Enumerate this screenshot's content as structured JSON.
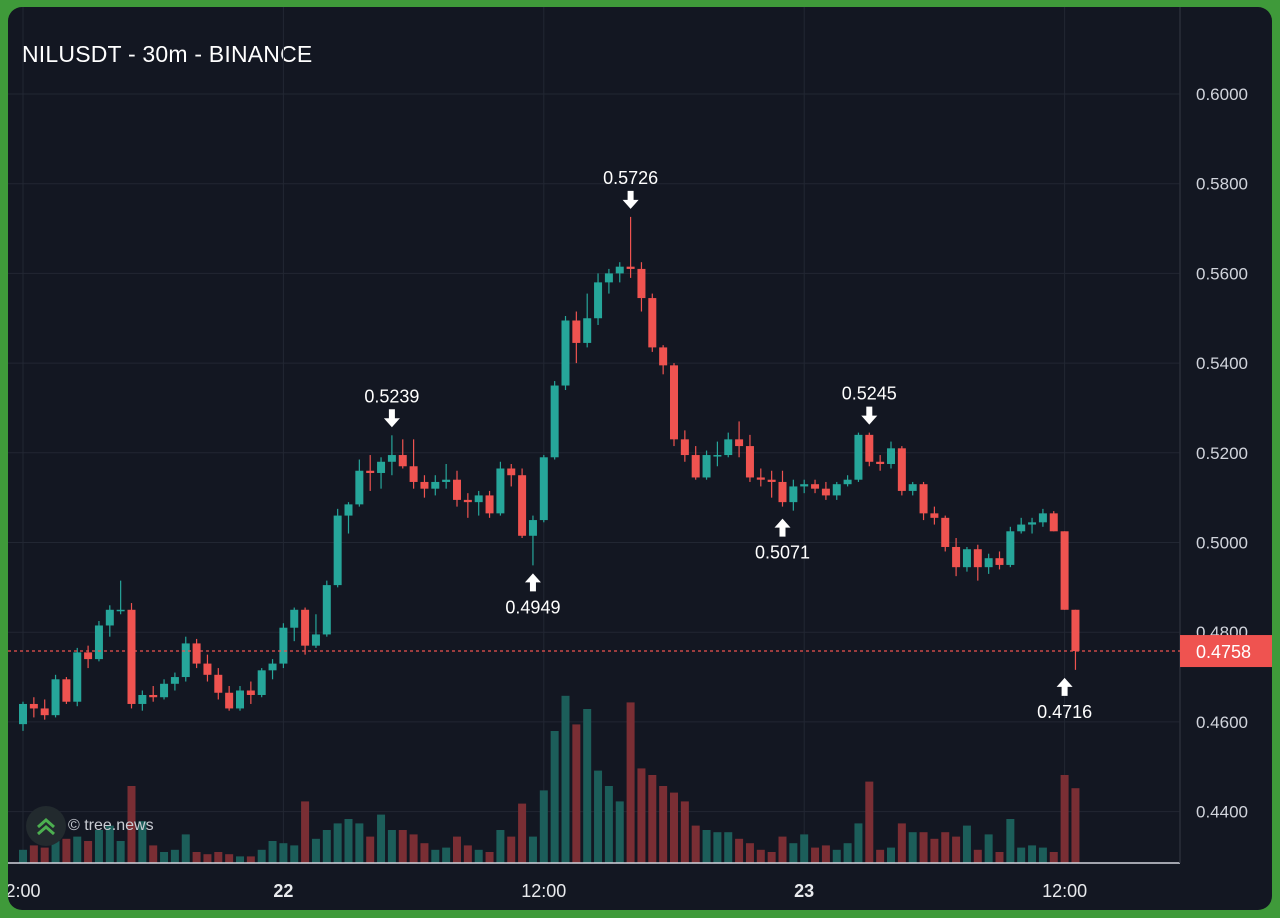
{
  "header": {
    "title": "NILUSDT - 30m - BINANCE"
  },
  "watermark": {
    "text": "© tree.news",
    "icon": "double-chevron-up-icon"
  },
  "colors": {
    "background": "#131722",
    "up": "#26a69a",
    "down": "#ef5350",
    "volume_up": "#1c5e5a",
    "volume_down": "#7a2e34",
    "grid": "#222733",
    "price_line": "#ef5350",
    "text": "#d1d4dc"
  },
  "chart_data": {
    "type": "candlestick",
    "symbol": "NILUSDT",
    "interval": "30m",
    "exchange": "BINANCE",
    "ylim": [
      0.43,
      0.61
    ],
    "y_ticks": [
      "0.6000",
      "0.5800",
      "0.5600",
      "0.5400",
      "0.5200",
      "0.5000",
      "0.4800",
      "0.4600",
      "0.4400"
    ],
    "x_ticks": [
      {
        "label": "2:00",
        "index": 0,
        "bold": false
      },
      {
        "label": "22",
        "index": 24,
        "bold": true
      },
      {
        "label": "12:00",
        "index": 48,
        "bold": false
      },
      {
        "label": "23",
        "index": 72,
        "bold": true
      },
      {
        "label": "12:00",
        "index": 96,
        "bold": false
      }
    ],
    "current_price": "0.4758",
    "annotations": [
      {
        "label": "0.5239",
        "index": 34,
        "direction": "down",
        "price": 0.5239
      },
      {
        "label": "0.4949",
        "index": 47,
        "direction": "up",
        "price": 0.4949
      },
      {
        "label": "0.5726",
        "index": 56,
        "direction": "down",
        "price": 0.5726
      },
      {
        "label": "0.5071",
        "index": 70,
        "direction": "up",
        "price": 0.5071
      },
      {
        "label": "0.5245",
        "index": 78,
        "direction": "down",
        "price": 0.5245
      },
      {
        "label": "0.4716",
        "index": 96,
        "direction": "up",
        "price": 0.4716
      }
    ],
    "candles": [
      [
        0.4595,
        0.4645,
        0.458,
        0.464,
        1.2
      ],
      [
        0.464,
        0.4655,
        0.461,
        0.463,
        1.6
      ],
      [
        0.463,
        0.465,
        0.4605,
        0.4615,
        1.4
      ],
      [
        0.4615,
        0.4705,
        0.461,
        0.4695,
        2.0
      ],
      [
        0.4695,
        0.47,
        0.464,
        0.4645,
        2.2
      ],
      [
        0.4645,
        0.4765,
        0.4635,
        0.4755,
        2.4
      ],
      [
        0.4755,
        0.477,
        0.472,
        0.474,
        2.0
      ],
      [
        0.474,
        0.4825,
        0.4735,
        0.4815,
        3.0
      ],
      [
        0.4815,
        0.486,
        0.479,
        0.485,
        3.4
      ],
      [
        0.485,
        0.4915,
        0.484,
        0.485,
        2.0
      ],
      [
        0.485,
        0.4865,
        0.463,
        0.464,
        7.0
      ],
      [
        0.464,
        0.467,
        0.4625,
        0.466,
        3.8
      ],
      [
        0.466,
        0.468,
        0.4645,
        0.4655,
        1.6
      ],
      [
        0.4655,
        0.4695,
        0.465,
        0.4685,
        1.0
      ],
      [
        0.4685,
        0.471,
        0.467,
        0.47,
        1.2
      ],
      [
        0.47,
        0.479,
        0.469,
        0.4775,
        2.6
      ],
      [
        0.4775,
        0.4785,
        0.472,
        0.473,
        1.0
      ],
      [
        0.473,
        0.475,
        0.469,
        0.4705,
        0.8
      ],
      [
        0.4705,
        0.472,
        0.465,
        0.4665,
        1.0
      ],
      [
        0.4665,
        0.468,
        0.4625,
        0.463,
        0.8
      ],
      [
        0.463,
        0.468,
        0.4625,
        0.467,
        0.6
      ],
      [
        0.467,
        0.469,
        0.464,
        0.466,
        0.6
      ],
      [
        0.466,
        0.472,
        0.4655,
        0.4715,
        1.2
      ],
      [
        0.4715,
        0.474,
        0.4695,
        0.473,
        2.0
      ],
      [
        0.473,
        0.482,
        0.472,
        0.481,
        1.8
      ],
      [
        0.481,
        0.4855,
        0.478,
        0.485,
        1.6
      ],
      [
        0.485,
        0.4855,
        0.475,
        0.477,
        5.6
      ],
      [
        0.477,
        0.484,
        0.4765,
        0.4795,
        2.2
      ],
      [
        0.4795,
        0.4915,
        0.479,
        0.4905,
        3.0
      ],
      [
        0.4905,
        0.5075,
        0.49,
        0.506,
        3.6
      ],
      [
        0.506,
        0.509,
        0.502,
        0.5085,
        4.0
      ],
      [
        0.5085,
        0.5185,
        0.508,
        0.516,
        3.6
      ],
      [
        0.516,
        0.5195,
        0.5115,
        0.5155,
        2.4
      ],
      [
        0.5155,
        0.519,
        0.512,
        0.518,
        4.4
      ],
      [
        0.518,
        0.5239,
        0.515,
        0.5195,
        3.0
      ],
      [
        0.5195,
        0.523,
        0.5165,
        0.517,
        3.0
      ],
      [
        0.517,
        0.523,
        0.512,
        0.5135,
        2.6
      ],
      [
        0.5135,
        0.515,
        0.51,
        0.512,
        1.8
      ],
      [
        0.512,
        0.515,
        0.5105,
        0.5135,
        1.2
      ],
      [
        0.5135,
        0.5175,
        0.512,
        0.514,
        1.4
      ],
      [
        0.514,
        0.516,
        0.508,
        0.5095,
        2.4
      ],
      [
        0.5095,
        0.511,
        0.5055,
        0.509,
        1.6
      ],
      [
        0.509,
        0.5115,
        0.506,
        0.5105,
        1.2
      ],
      [
        0.5105,
        0.5115,
        0.5055,
        0.5065,
        1.0
      ],
      [
        0.5065,
        0.518,
        0.506,
        0.5165,
        3.0
      ],
      [
        0.5165,
        0.5175,
        0.5125,
        0.515,
        2.4
      ],
      [
        0.515,
        0.5165,
        0.501,
        0.5015,
        5.4
      ],
      [
        0.5015,
        0.506,
        0.4949,
        0.505,
        2.4
      ],
      [
        0.505,
        0.5195,
        0.5045,
        0.519,
        6.6
      ],
      [
        0.519,
        0.536,
        0.5185,
        0.535,
        12.0
      ],
      [
        0.535,
        0.5505,
        0.534,
        0.5495,
        15.2
      ],
      [
        0.5495,
        0.5515,
        0.54,
        0.5445,
        12.6
      ],
      [
        0.5445,
        0.5555,
        0.5435,
        0.55,
        14.0
      ],
      [
        0.55,
        0.56,
        0.5485,
        0.558,
        8.4
      ],
      [
        0.558,
        0.561,
        0.5555,
        0.56,
        7.0
      ],
      [
        0.56,
        0.5625,
        0.558,
        0.5615,
        5.6
      ],
      [
        0.5615,
        0.5726,
        0.559,
        0.561,
        14.6
      ],
      [
        0.561,
        0.5625,
        0.5515,
        0.5545,
        8.6
      ],
      [
        0.5545,
        0.5555,
        0.5425,
        0.5435,
        8.0
      ],
      [
        0.5435,
        0.544,
        0.5375,
        0.5395,
        7.0
      ],
      [
        0.5395,
        0.54,
        0.5215,
        0.523,
        6.4
      ],
      [
        0.523,
        0.525,
        0.518,
        0.5195,
        5.6
      ],
      [
        0.5195,
        0.5215,
        0.514,
        0.5145,
        3.4
      ],
      [
        0.5145,
        0.5205,
        0.514,
        0.5195,
        3.0
      ],
      [
        0.5195,
        0.5225,
        0.517,
        0.5195,
        2.8
      ],
      [
        0.5195,
        0.5245,
        0.519,
        0.523,
        2.8
      ],
      [
        0.523,
        0.527,
        0.519,
        0.5215,
        2.2
      ],
      [
        0.5215,
        0.524,
        0.5135,
        0.5145,
        1.8
      ],
      [
        0.5145,
        0.5165,
        0.5125,
        0.514,
        1.2
      ],
      [
        0.514,
        0.516,
        0.51,
        0.5135,
        1.0
      ],
      [
        0.5135,
        0.516,
        0.508,
        0.509,
        2.4
      ],
      [
        0.509,
        0.514,
        0.5071,
        0.5125,
        1.8
      ],
      [
        0.5125,
        0.514,
        0.511,
        0.513,
        2.6
      ],
      [
        0.513,
        0.514,
        0.511,
        0.512,
        1.4
      ],
      [
        0.512,
        0.5135,
        0.5095,
        0.5105,
        1.6
      ],
      [
        0.5105,
        0.5135,
        0.5095,
        0.513,
        1.2
      ],
      [
        0.513,
        0.515,
        0.5125,
        0.514,
        1.8
      ],
      [
        0.514,
        0.5245,
        0.5135,
        0.524,
        3.6
      ],
      [
        0.524,
        0.5245,
        0.517,
        0.518,
        7.4
      ],
      [
        0.518,
        0.5195,
        0.516,
        0.5175,
        1.2
      ],
      [
        0.5175,
        0.5225,
        0.5165,
        0.521,
        1.4
      ],
      [
        0.521,
        0.5215,
        0.5105,
        0.5115,
        3.6
      ],
      [
        0.5115,
        0.5135,
        0.5105,
        0.513,
        2.8
      ],
      [
        0.513,
        0.5135,
        0.505,
        0.5065,
        2.8
      ],
      [
        0.5065,
        0.508,
        0.504,
        0.5055,
        2.2
      ],
      [
        0.5055,
        0.506,
        0.498,
        0.499,
        2.8
      ],
      [
        0.499,
        0.501,
        0.4925,
        0.4945,
        2.4
      ],
      [
        0.4945,
        0.499,
        0.4935,
        0.4985,
        3.4
      ],
      [
        0.4985,
        0.4995,
        0.4915,
        0.4945,
        1.2
      ],
      [
        0.4945,
        0.4975,
        0.493,
        0.4965,
        2.6
      ],
      [
        0.4965,
        0.498,
        0.494,
        0.495,
        1.0
      ],
      [
        0.495,
        0.5035,
        0.4945,
        0.5025,
        4.0
      ],
      [
        0.5025,
        0.5055,
        0.502,
        0.504,
        1.4
      ],
      [
        0.504,
        0.5055,
        0.502,
        0.5045,
        1.6
      ],
      [
        0.5045,
        0.5075,
        0.5035,
        0.5065,
        1.4
      ],
      [
        0.5065,
        0.507,
        0.5025,
        0.5025,
        1.0
      ],
      [
        0.5025,
        0.5025,
        0.485,
        0.485,
        8.0
      ],
      [
        0.485,
        0.485,
        0.4716,
        0.4758,
        6.8
      ]
    ]
  }
}
